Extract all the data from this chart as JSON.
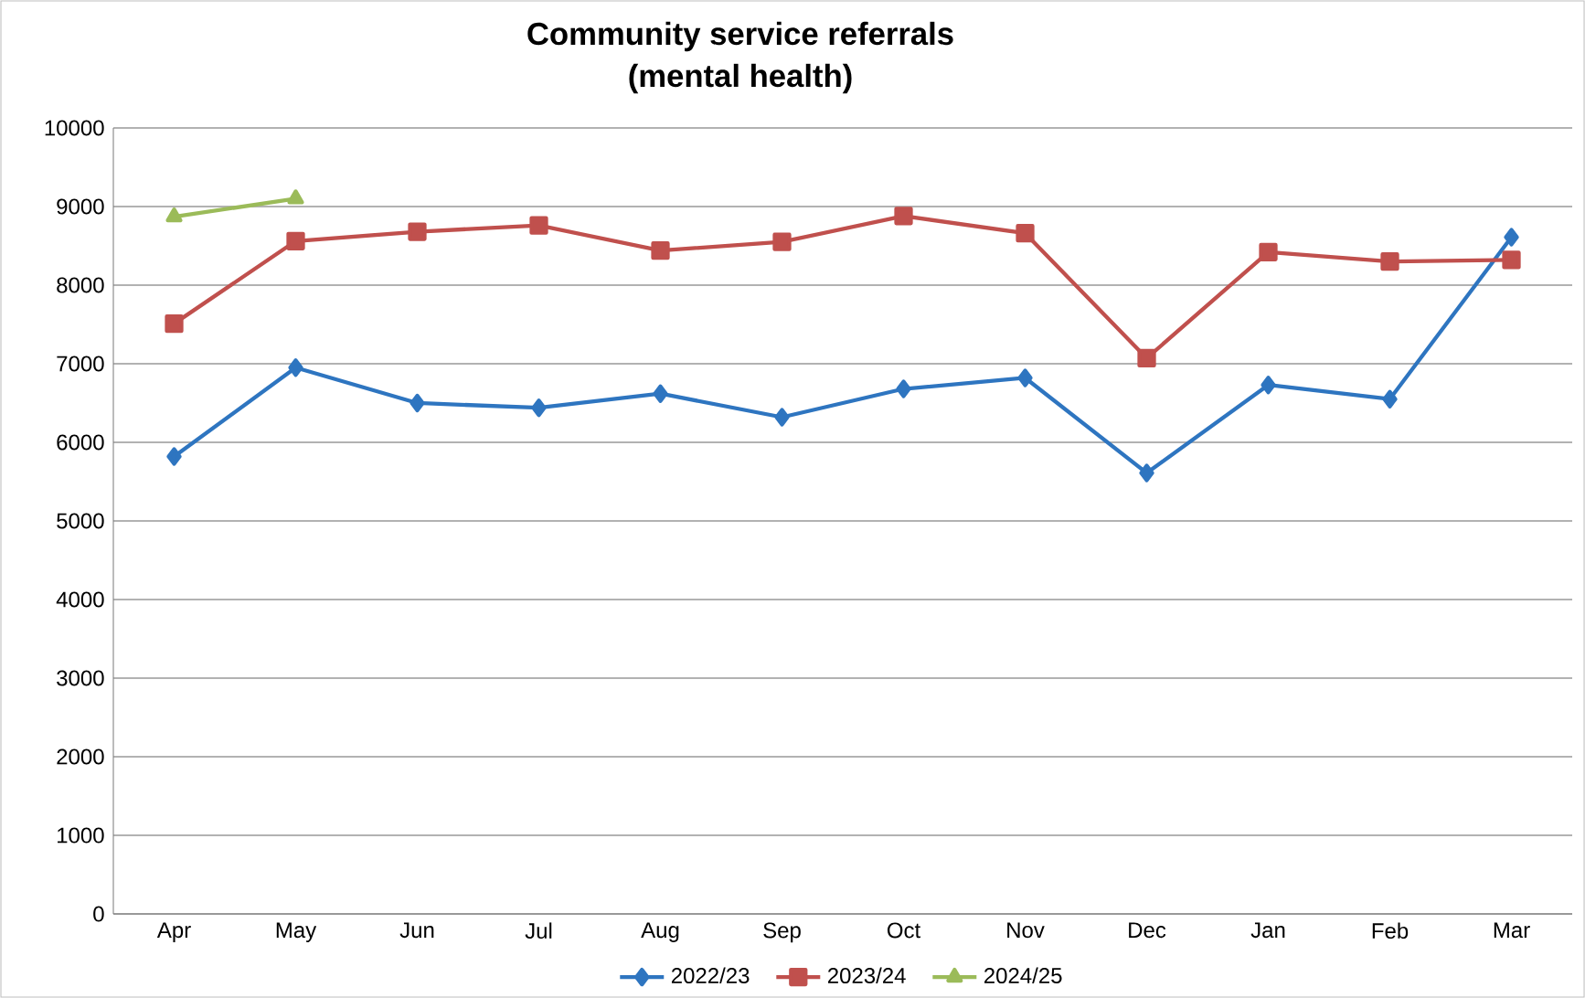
{
  "chart_data": {
    "type": "line",
    "title": "Community service referrals",
    "subtitle": "(mental health)",
    "categories": [
      "Apr",
      "May",
      "Jun",
      "Jul",
      "Aug",
      "Sep",
      "Oct",
      "Nov",
      "Dec",
      "Jan",
      "Feb",
      "Mar"
    ],
    "series": [
      {
        "name": "2022/23",
        "color": "#2e75c0",
        "marker": "diamond",
        "values": [
          5820,
          6950,
          6500,
          6440,
          6620,
          6320,
          6680,
          6820,
          5610,
          6730,
          6550,
          8610
        ]
      },
      {
        "name": "2023/24",
        "color": "#c0504d",
        "marker": "square",
        "values": [
          7510,
          8560,
          8680,
          8760,
          8440,
          8550,
          8880,
          8660,
          7070,
          8420,
          8300,
          8320
        ]
      },
      {
        "name": "2024/25",
        "color": "#9bbb59",
        "marker": "triangle",
        "values": [
          8870,
          9100,
          null,
          null,
          null,
          null,
          null,
          null,
          null,
          null,
          null,
          null
        ]
      }
    ],
    "ylim": [
      0,
      10000
    ],
    "yticks": [
      0,
      1000,
      2000,
      3000,
      4000,
      5000,
      6000,
      7000,
      8000,
      9000,
      10000
    ],
    "grid": "y",
    "legend": "bottom",
    "line_style": "solid"
  }
}
